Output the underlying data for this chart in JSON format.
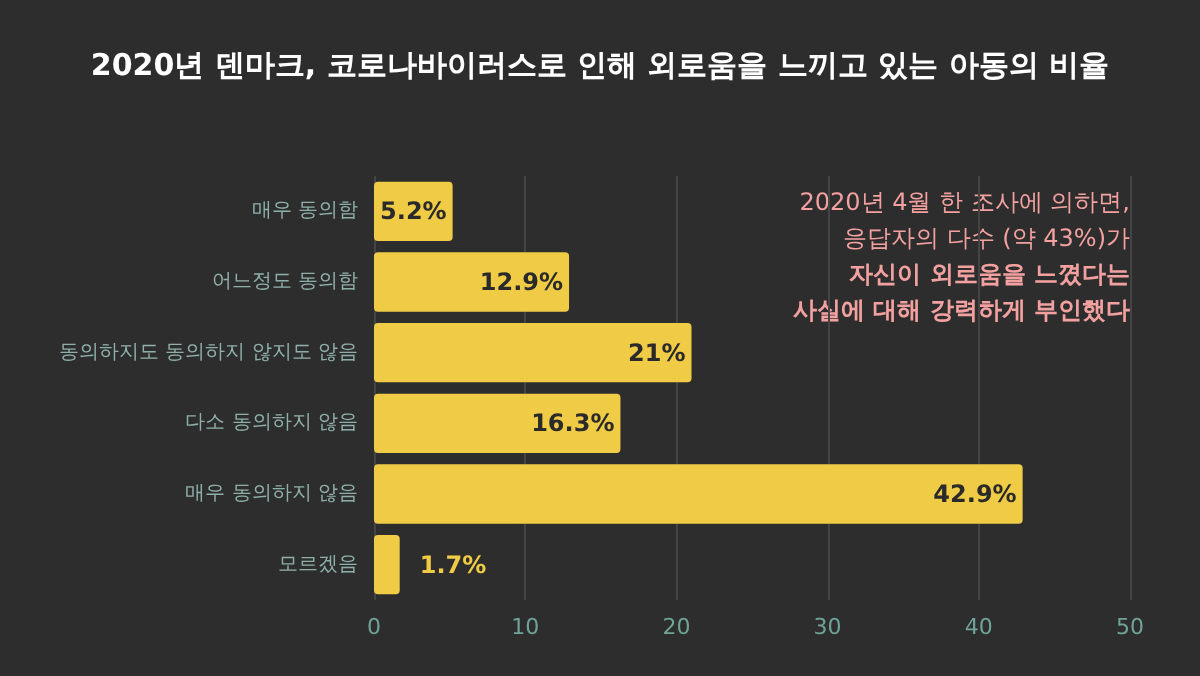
{
  "chart_data": {
    "type": "bar",
    "orientation": "horizontal",
    "title": "2020년 덴마크, 코로나바이러스로 인해 외로움을 느끼고 있는 아동의 비율",
    "categories": [
      "매우 동의함",
      "어느정도 동의함",
      "동의하지도 동의하지 않지도 않음",
      "다소 동의하지 않음",
      "매우 동의하지 않음",
      "모르겠음"
    ],
    "values": [
      5.2,
      12.9,
      21,
      16.3,
      42.9,
      1.7
    ],
    "value_labels": [
      "5.2%",
      "12.9%",
      "21%",
      "16.3%",
      "42.9%",
      "1.7%"
    ],
    "color": "#f0cb45",
    "xlim": [
      0,
      50
    ],
    "xticks": [
      0,
      10,
      20,
      30,
      40,
      50
    ],
    "grid": "x",
    "annotations": [
      "2020년 4월 한 조사에 의하면,\n응답자의 다수 (약 43%)가",
      "자신이 외로움을 느꼈다는\n사실에 대해 강력하게 부인했다"
    ]
  }
}
